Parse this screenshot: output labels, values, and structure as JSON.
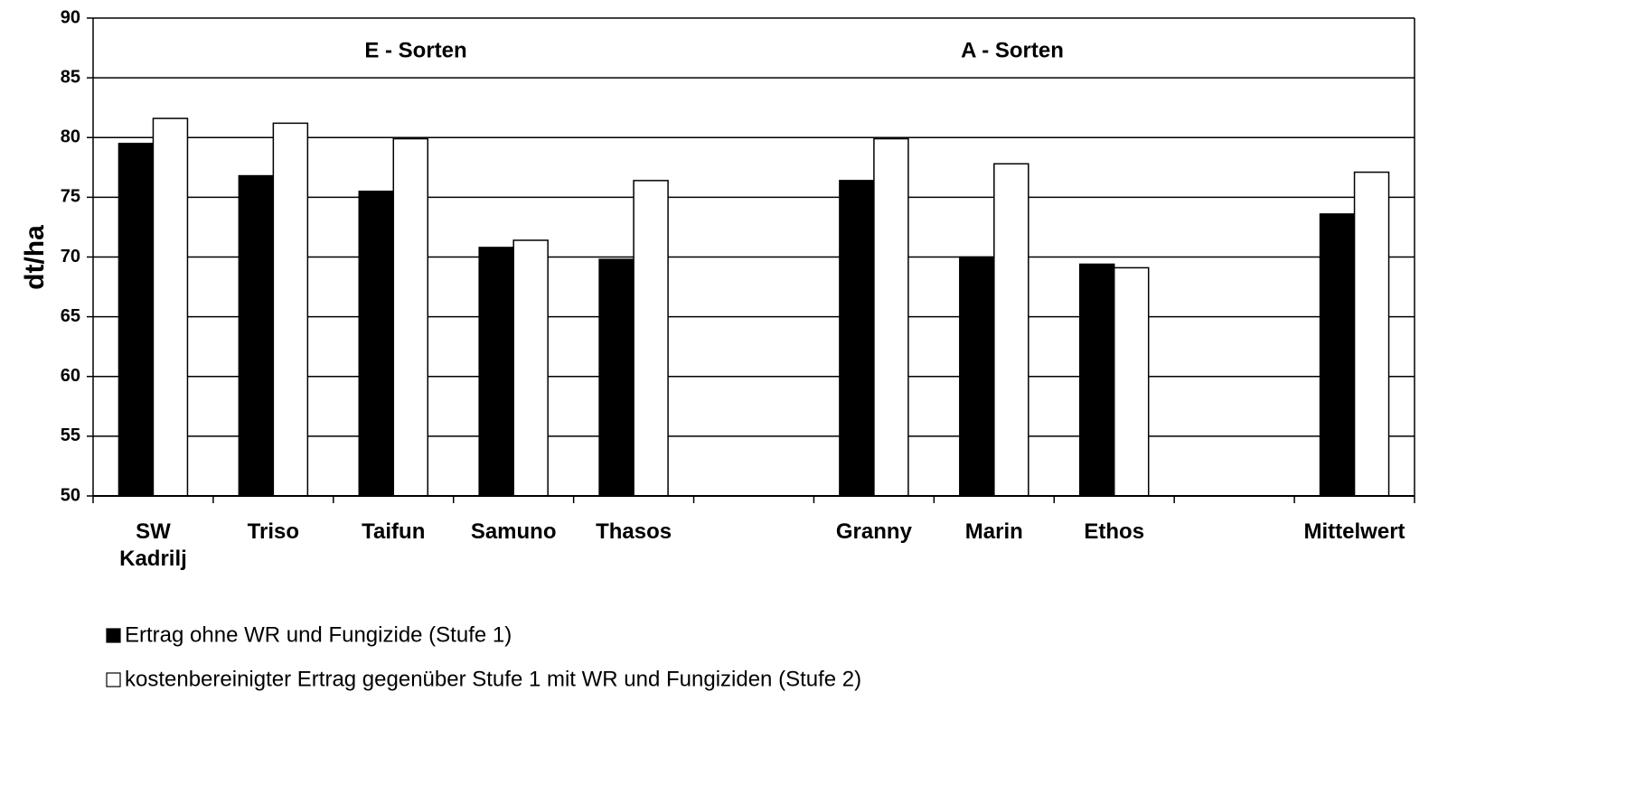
{
  "chart_data": {
    "type": "bar",
    "ylabel": "dt/ha",
    "annotations": [
      "E - Sorten",
      "A - Sorten"
    ],
    "categories": [
      "SW Kadrilj",
      "Triso",
      "Taifun",
      "Samuno",
      "Thasos",
      null,
      "Granny",
      "Marin",
      "Ethos",
      null,
      "Mittelwert"
    ],
    "series": [
      {
        "name": "Ertrag ohne WR und Fungizide (Stufe 1)",
        "color": "#000000",
        "values": [
          79.5,
          76.8,
          75.5,
          70.8,
          69.8,
          null,
          76.4,
          70.0,
          69.4,
          null,
          73.6
        ]
      },
      {
        "name": "kostenbereinigter Ertrag gegenüber Stufe 1 mit WR und Fungiziden (Stufe 2)",
        "color": "#ffffff",
        "values": [
          81.6,
          81.2,
          79.9,
          71.4,
          76.4,
          null,
          79.9,
          77.8,
          69.1,
          null,
          77.1
        ]
      }
    ],
    "ylim": [
      50,
      90
    ],
    "yticks": [
      50,
      55,
      60,
      65,
      70,
      75,
      80,
      85,
      90
    ],
    "grid": true,
    "legend": "bottom"
  }
}
